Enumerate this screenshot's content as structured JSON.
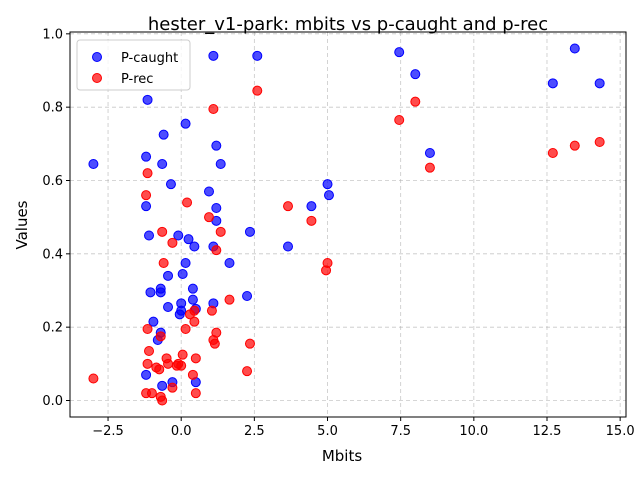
{
  "chart_data": {
    "type": "scatter",
    "title": "hester_v1-park: mbits vs p-caught and p-rec",
    "xlabel": "Mbits",
    "ylabel": "Values",
    "xlim": [
      -3.8,
      15.2
    ],
    "ylim": [
      -0.045,
      1.005
    ],
    "xticks": [
      -2.5,
      0.0,
      2.5,
      5.0,
      7.5,
      10.0,
      12.5,
      15.0
    ],
    "xtick_labels": [
      "−2.5",
      "0.0",
      "2.5",
      "5.0",
      "7.5",
      "10.0",
      "12.5",
      "15.0"
    ],
    "yticks": [
      0.0,
      0.2,
      0.4,
      0.6,
      0.8,
      1.0
    ],
    "ytick_labels": [
      "0.0",
      "0.2",
      "0.4",
      "0.6",
      "0.8",
      "1.0"
    ],
    "grid": true,
    "legend_position": "upper-left",
    "series": [
      {
        "name": "P-caught",
        "color": "#0000ff",
        "points": [
          [
            -3.0,
            0.645
          ],
          [
            -1.2,
            0.07
          ],
          [
            -1.15,
            0.82
          ],
          [
            -1.2,
            0.665
          ],
          [
            -1.2,
            0.53
          ],
          [
            -1.1,
            0.45
          ],
          [
            -1.05,
            0.295
          ],
          [
            -0.95,
            0.215
          ],
          [
            -0.8,
            0.165
          ],
          [
            -0.7,
            0.305
          ],
          [
            -0.7,
            0.295
          ],
          [
            -0.7,
            0.185
          ],
          [
            -0.65,
            0.04
          ],
          [
            -0.6,
            0.725
          ],
          [
            -0.65,
            0.645
          ],
          [
            -0.45,
            0.34
          ],
          [
            -0.45,
            0.255
          ],
          [
            -0.35,
            0.59
          ],
          [
            -0.3,
            0.05
          ],
          [
            -0.1,
            0.45
          ],
          [
            -0.05,
            0.235
          ],
          [
            0.0,
            0.265
          ],
          [
            0.0,
            0.245
          ],
          [
            0.05,
            0.345
          ],
          [
            0.15,
            0.375
          ],
          [
            0.15,
            0.755
          ],
          [
            0.25,
            0.44
          ],
          [
            0.4,
            0.305
          ],
          [
            0.4,
            0.275
          ],
          [
            0.45,
            0.42
          ],
          [
            0.5,
            0.25
          ],
          [
            0.5,
            0.05
          ],
          [
            0.95,
            0.57
          ],
          [
            1.1,
            0.265
          ],
          [
            1.1,
            0.42
          ],
          [
            1.1,
            0.94
          ],
          [
            1.2,
            0.525
          ],
          [
            1.2,
            0.49
          ],
          [
            1.2,
            0.695
          ],
          [
            1.35,
            0.645
          ],
          [
            1.65,
            0.375
          ],
          [
            2.25,
            0.285
          ],
          [
            2.35,
            0.46
          ],
          [
            2.6,
            0.94
          ],
          [
            3.65,
            0.42
          ],
          [
            4.45,
            0.53
          ],
          [
            5.0,
            0.59
          ],
          [
            5.05,
            0.56
          ],
          [
            7.45,
            0.95
          ],
          [
            8.0,
            0.89
          ],
          [
            8.5,
            0.675
          ],
          [
            12.7,
            0.865
          ],
          [
            13.45,
            0.96
          ],
          [
            14.3,
            0.865
          ]
        ]
      },
      {
        "name": "P-rec",
        "color": "#ff0000",
        "points": [
          [
            -3.0,
            0.06
          ],
          [
            -1.2,
            0.56
          ],
          [
            -1.15,
            0.62
          ],
          [
            -1.15,
            0.195
          ],
          [
            -1.1,
            0.135
          ],
          [
            -1.15,
            0.1
          ],
          [
            -1.2,
            0.02
          ],
          [
            -1.0,
            0.02
          ],
          [
            -0.85,
            0.09
          ],
          [
            -0.75,
            0.085
          ],
          [
            -0.7,
            0.175
          ],
          [
            -0.7,
            0.01
          ],
          [
            -0.65,
            0.0
          ],
          [
            -0.65,
            0.46
          ],
          [
            -0.6,
            0.375
          ],
          [
            -0.5,
            0.115
          ],
          [
            -0.45,
            0.1
          ],
          [
            -0.3,
            0.43
          ],
          [
            -0.3,
            0.035
          ],
          [
            -0.15,
            0.095
          ],
          [
            -0.1,
            0.1
          ],
          [
            0.0,
            0.095
          ],
          [
            0.05,
            0.125
          ],
          [
            0.15,
            0.195
          ],
          [
            0.2,
            0.54
          ],
          [
            0.3,
            0.235
          ],
          [
            0.4,
            0.07
          ],
          [
            0.45,
            0.215
          ],
          [
            0.45,
            0.245
          ],
          [
            0.5,
            0.115
          ],
          [
            0.5,
            0.02
          ],
          [
            0.95,
            0.5
          ],
          [
            1.05,
            0.245
          ],
          [
            1.1,
            0.795
          ],
          [
            1.1,
            0.165
          ],
          [
            1.15,
            0.155
          ],
          [
            1.2,
            0.185
          ],
          [
            1.2,
            0.41
          ],
          [
            1.35,
            0.46
          ],
          [
            1.65,
            0.275
          ],
          [
            2.25,
            0.08
          ],
          [
            2.35,
            0.155
          ],
          [
            2.6,
            0.845
          ],
          [
            3.65,
            0.53
          ],
          [
            4.45,
            0.49
          ],
          [
            5.0,
            0.375
          ],
          [
            4.95,
            0.355
          ],
          [
            7.45,
            0.765
          ],
          [
            8.0,
            0.815
          ],
          [
            8.5,
            0.635
          ],
          [
            12.7,
            0.675
          ],
          [
            13.45,
            0.695
          ],
          [
            14.3,
            0.705
          ]
        ]
      }
    ]
  }
}
